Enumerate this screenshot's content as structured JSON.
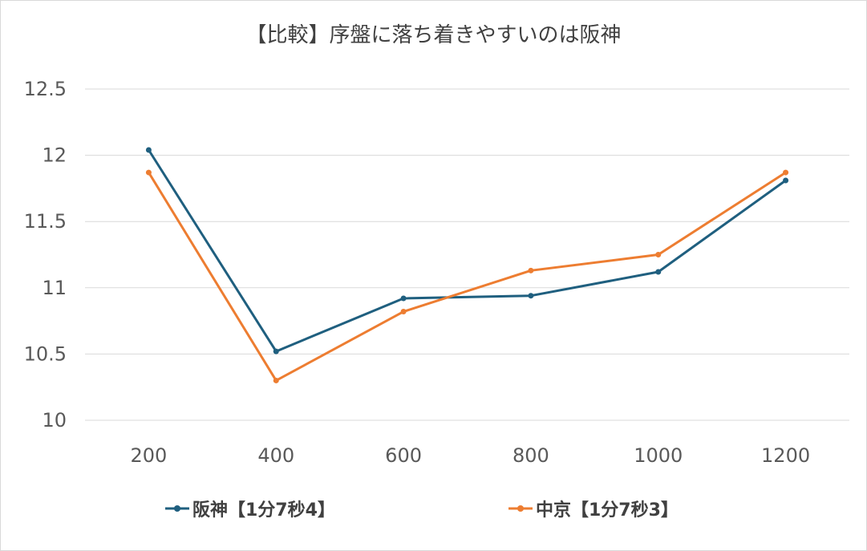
{
  "chart_data": {
    "type": "line",
    "title": "【比較】序盤に落ち着きやすいのは阪神",
    "categories": [
      "200",
      "400",
      "600",
      "800",
      "1000",
      "1200"
    ],
    "y_ticks": [
      "10",
      "10.5",
      "11",
      "11.5",
      "12",
      "12.5"
    ],
    "ylim": [
      10,
      12.5
    ],
    "grid": true,
    "legend_position": "bottom",
    "series": [
      {
        "name": "阪神【1分7秒4】",
        "color": "#1f5f7f",
        "values": [
          12.04,
          10.52,
          10.92,
          10.94,
          11.12,
          11.81
        ]
      },
      {
        "name": "中京【1分7秒3】",
        "color": "#ed7d31",
        "values": [
          11.87,
          10.3,
          10.82,
          11.13,
          11.25,
          11.87
        ]
      }
    ]
  }
}
